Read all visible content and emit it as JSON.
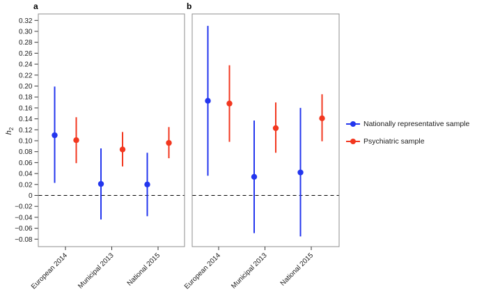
{
  "y_axis": {
    "label_base": "h",
    "label_sub": "2",
    "tick_values": [
      0.32,
      0.3,
      0.28,
      0.26,
      0.24,
      0.22,
      0.2,
      0.18,
      0.16,
      0.14,
      0.12,
      0.1,
      0.08,
      0.06,
      0.04,
      0.02,
      0,
      -0.02,
      -0.04,
      -0.06,
      -0.08
    ],
    "tick_labels": [
      "0.32",
      "0.30",
      "0.28",
      "0.26",
      "0.24",
      "0.22",
      "0.20",
      "0.18",
      "0.16",
      "0.14",
      "0.12",
      "0.10",
      "0.08",
      "0.06",
      "0.04",
      "0.02",
      "0",
      "−0.02",
      "−0.04",
      "−0.06",
      "−0.08"
    ]
  },
  "chart_data": [
    {
      "type": "scatter",
      "panel_label": "a",
      "title": "",
      "xlabel": "",
      "ylabel": "h2",
      "categories": [
        "European 2014",
        "Municipal 2013",
        "National 2015"
      ],
      "ylim": [
        -0.093,
        0.332
      ],
      "grid": false,
      "zero_reference_line": 0,
      "legend_position": "right-of-figure",
      "series": [
        {
          "name": "Nationally representative sample",
          "color": "#2336ee",
          "points": [
            {
              "category": "European 2014",
              "est": 0.11,
              "lo": 0.023,
              "hi": 0.199
            },
            {
              "category": "Municipal 2013",
              "est": 0.021,
              "lo": -0.044,
              "hi": 0.086
            },
            {
              "category": "National 2015",
              "est": 0.02,
              "lo": -0.038,
              "hi": 0.078
            }
          ]
        },
        {
          "name": "Psychiatric sample",
          "color": "#f2371f",
          "points": [
            {
              "category": "European 2014",
              "est": 0.101,
              "lo": 0.059,
              "hi": 0.143
            },
            {
              "category": "Municipal 2013",
              "est": 0.084,
              "lo": 0.053,
              "hi": 0.116
            },
            {
              "category": "National 2015",
              "est": 0.096,
              "lo": 0.068,
              "hi": 0.125
            }
          ]
        }
      ]
    },
    {
      "type": "scatter",
      "panel_label": "b",
      "title": "",
      "xlabel": "",
      "ylabel": "h2",
      "categories": [
        "European 2014",
        "Municipal 2013",
        "National 2015"
      ],
      "ylim": [
        -0.093,
        0.332
      ],
      "grid": false,
      "zero_reference_line": 0,
      "legend_position": "right-of-figure",
      "series": [
        {
          "name": "Nationally representative sample",
          "color": "#2336ee",
          "points": [
            {
              "category": "European 2014",
              "est": 0.173,
              "lo": 0.036,
              "hi": 0.31
            },
            {
              "category": "Municipal 2013",
              "est": 0.034,
              "lo": -0.069,
              "hi": 0.137
            },
            {
              "category": "National 2015",
              "est": 0.042,
              "lo": -0.075,
              "hi": 0.16
            }
          ]
        },
        {
          "name": "Psychiatric sample",
          "color": "#f2371f",
          "points": [
            {
              "category": "European 2014",
              "est": 0.168,
              "lo": 0.098,
              "hi": 0.238
            },
            {
              "category": "Municipal 2013",
              "est": 0.123,
              "lo": 0.078,
              "hi": 0.17
            },
            {
              "category": "National 2015",
              "est": 0.141,
              "lo": 0.099,
              "hi": 0.185
            }
          ]
        }
      ]
    }
  ],
  "legend": {
    "items": [
      {
        "label": "Nationally representative sample",
        "color": "#2336ee"
      },
      {
        "label": "Psychiatric sample",
        "color": "#f2371f"
      }
    ]
  },
  "colors": {
    "blue_series": "#2336ee",
    "red_series": "#f2371f",
    "panel_border": "#8e8e8e",
    "tick": "#333333",
    "text": "#1a1a1a",
    "zero_line": "#000000"
  }
}
